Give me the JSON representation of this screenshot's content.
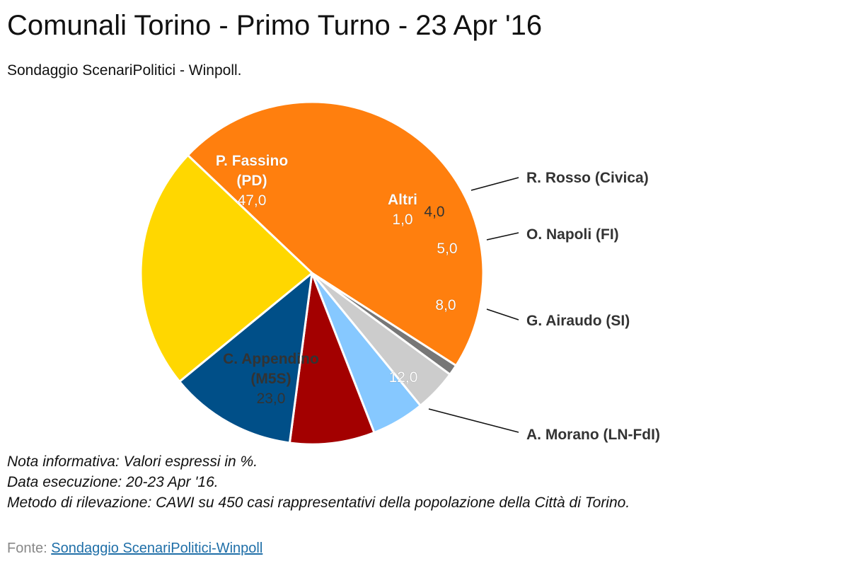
{
  "header": {
    "title": "Comunali Torino - Primo Turno - 23 Apr '16",
    "subtitle": "Sondaggio ScenariPolitici - Winpoll."
  },
  "notes": [
    "Nota informativa: Valori espressi in %.",
    "Data esecuzione: 20-23 Apr '16.",
    "Metodo di rilevazione: CAWI su 450 casi rappresentativi della popolazione della Città di Torino."
  ],
  "source": {
    "prefix": "Fonte: ",
    "link_text": "Sondaggio ScenariPolitici-Winpoll"
  },
  "chart_data": {
    "type": "pie",
    "unit": "%",
    "slices": [
      {
        "label": "P. Fassino (PD)",
        "label_lines": [
          "P. Fassino",
          "(PD)"
        ],
        "value": 47.0,
        "display": "47,0",
        "color": "#FF7F0E",
        "label_style": "inside",
        "text_color": "#ffffff"
      },
      {
        "label": "Altri",
        "label_lines": [
          "Altri"
        ],
        "value": 1.0,
        "display": "1,0",
        "color": "#777777",
        "label_style": "inside",
        "text_color": "#ffffff"
      },
      {
        "label": "R. Rosso (Civica)",
        "label_lines": [
          "R. Rosso (Civica)"
        ],
        "value": 4.0,
        "display": "4,0",
        "color": "#CCCCCC",
        "label_style": "outside",
        "text_color": "#333333"
      },
      {
        "label": "O. Napoli (FI)",
        "label_lines": [
          "O. Napoli (FI)"
        ],
        "value": 5.0,
        "display": "5,0",
        "color": "#86C8FF",
        "label_style": "outside",
        "text_color": "#ffffff"
      },
      {
        "label": "G. Airaudo (SI)",
        "label_lines": [
          "G. Airaudo (SI)"
        ],
        "value": 8.0,
        "display": "8,0",
        "color": "#A30000",
        "label_style": "outside",
        "text_color": "#ffffff"
      },
      {
        "label": "A. Morano (LN-FdI)",
        "label_lines": [
          "A. Morano (LN-FdI)"
        ],
        "value": 12.0,
        "display": "12,0",
        "color": "#004F88",
        "label_style": "outside",
        "text_color": "#ffffff"
      },
      {
        "label": "C. Appendino (M5S)",
        "label_lines": [
          "C. Appendino",
          "(M5S)"
        ],
        "value": 23.0,
        "display": "23,0",
        "color": "#FFD700",
        "label_style": "inside",
        "text_color": "#333333"
      }
    ]
  }
}
